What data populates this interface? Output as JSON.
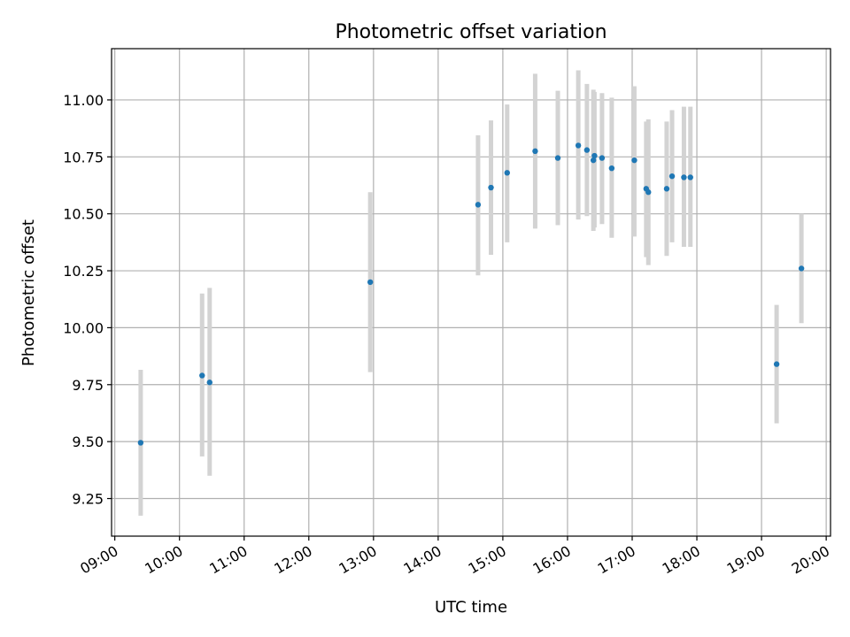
{
  "chart_data": {
    "type": "scatter",
    "title": "Photometric offset variation",
    "xlabel": "UTC time",
    "ylabel": "Photometric offset",
    "xlim": [
      "08:57",
      "20:04"
    ],
    "ylim": [
      9.085,
      11.225
    ],
    "grid": true,
    "x_ticks": [
      "09:00",
      "10:00",
      "11:00",
      "12:00",
      "13:00",
      "14:00",
      "15:00",
      "16:00",
      "17:00",
      "18:00",
      "19:00",
      "20:00"
    ],
    "y_ticks": [
      "9.25",
      "9.50",
      "9.75",
      "10.00",
      "10.25",
      "10.50",
      "10.75",
      "11.00"
    ],
    "colors": {
      "points": "#1f77b4",
      "error_bars": "#d3d3d3"
    },
    "points": [
      {
        "x": "09:24",
        "y": 9.495,
        "y_low": 9.175,
        "y_high": 9.815
      },
      {
        "x": "10:21",
        "y": 9.79,
        "y_low": 9.435,
        "y_high": 10.15
      },
      {
        "x": "10:28",
        "y": 9.76,
        "y_low": 9.35,
        "y_high": 10.175
      },
      {
        "x": "12:57",
        "y": 10.2,
        "y_low": 9.805,
        "y_high": 10.595
      },
      {
        "x": "14:37",
        "y": 10.54,
        "y_low": 10.23,
        "y_high": 10.845
      },
      {
        "x": "14:49",
        "y": 10.615,
        "y_low": 10.32,
        "y_high": 10.91
      },
      {
        "x": "15:04",
        "y": 10.68,
        "y_low": 10.375,
        "y_high": 10.98
      },
      {
        "x": "15:30",
        "y": 10.775,
        "y_low": 10.435,
        "y_high": 11.115
      },
      {
        "x": "15:51",
        "y": 10.745,
        "y_low": 10.45,
        "y_high": 11.04
      },
      {
        "x": "16:10",
        "y": 10.8,
        "y_low": 10.475,
        "y_high": 11.13
      },
      {
        "x": "16:18",
        "y": 10.78,
        "y_low": 10.49,
        "y_high": 11.07
      },
      {
        "x": "16:24",
        "y": 10.735,
        "y_low": 10.425,
        "y_high": 11.045
      },
      {
        "x": "16:25",
        "y": 10.755,
        "y_low": 10.44,
        "y_high": 11.035
      },
      {
        "x": "16:32",
        "y": 10.745,
        "y_low": 10.455,
        "y_high": 11.03
      },
      {
        "x": "16:41",
        "y": 10.7,
        "y_low": 10.395,
        "y_high": 11.01
      },
      {
        "x": "17:02",
        "y": 10.735,
        "y_low": 10.4,
        "y_high": 11.06
      },
      {
        "x": "17:13",
        "y": 10.61,
        "y_low": 10.31,
        "y_high": 10.905
      },
      {
        "x": "17:15",
        "y": 10.595,
        "y_low": 10.275,
        "y_high": 10.915
      },
      {
        "x": "17:32",
        "y": 10.61,
        "y_low": 10.315,
        "y_high": 10.905
      },
      {
        "x": "17:37",
        "y": 10.665,
        "y_low": 10.375,
        "y_high": 10.955
      },
      {
        "x": "17:48",
        "y": 10.66,
        "y_low": 10.355,
        "y_high": 10.97
      },
      {
        "x": "17:54",
        "y": 10.66,
        "y_low": 10.355,
        "y_high": 10.97
      },
      {
        "x": "19:14",
        "y": 9.84,
        "y_low": 9.58,
        "y_high": 10.1
      },
      {
        "x": "19:37",
        "y": 10.26,
        "y_low": 10.02,
        "y_high": 10.5
      }
    ]
  }
}
